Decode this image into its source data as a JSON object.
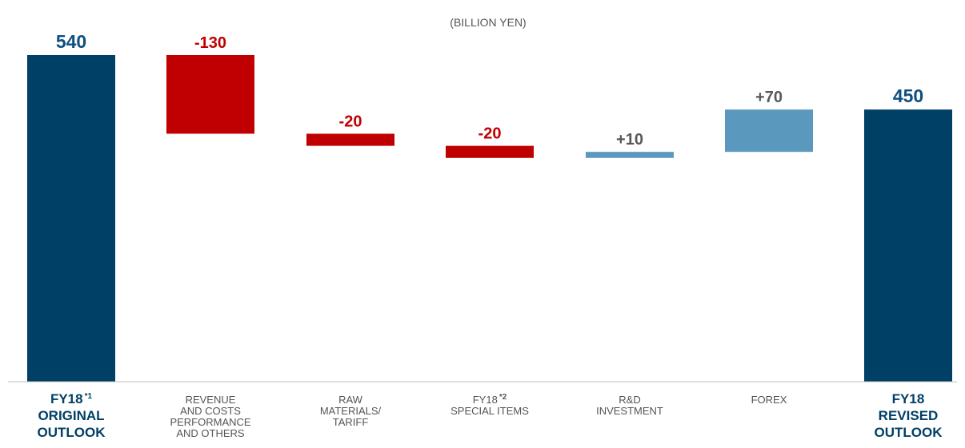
{
  "chart_data": {
    "type": "waterfall",
    "unit_label": "(BILLION YEN)",
    "ylim": [
      0,
      540
    ],
    "colors": {
      "total": "#003f66",
      "decrease": "#c00000",
      "increase": "#5b98bd",
      "total_text": "#0d4f80",
      "decrease_text": "#c00000",
      "increase_text": "#595959",
      "axis": "#bfbfbf"
    },
    "bars": [
      {
        "kind": "total",
        "value": 540,
        "start": 0,
        "end": 540,
        "label": "540",
        "category_lines": [
          "FY18",
          "ORIGINAL",
          "OUTLOOK"
        ],
        "footnote": "*1",
        "style": "major"
      },
      {
        "kind": "decrease",
        "value": -130,
        "start": 540,
        "end": 410,
        "label": "-130",
        "category_lines": [
          "REVENUE",
          "AND COSTS",
          "PERFORMANCE",
          "AND OTHERS"
        ],
        "footnote": "",
        "style": "minor"
      },
      {
        "kind": "decrease",
        "value": -20,
        "start": 410,
        "end": 390,
        "label": "-20",
        "category_lines": [
          "RAW",
          "MATERIALS/",
          "TARIFF"
        ],
        "footnote": "",
        "style": "minor"
      },
      {
        "kind": "decrease",
        "value": -20,
        "start": 390,
        "end": 370,
        "label": "-20",
        "category_lines": [
          "FY18",
          "SPECIAL ITEMS"
        ],
        "footnote": "*2",
        "style": "minor"
      },
      {
        "kind": "increase",
        "value": 10,
        "start": 370,
        "end": 380,
        "label": "+10",
        "category_lines": [
          "R&D",
          "INVESTMENT"
        ],
        "footnote": "",
        "style": "minor"
      },
      {
        "kind": "increase",
        "value": 70,
        "start": 380,
        "end": 450,
        "label": "+70",
        "category_lines": [
          "FOREX"
        ],
        "footnote": "",
        "style": "minor"
      },
      {
        "kind": "total",
        "value": 450,
        "start": 0,
        "end": 450,
        "label": "450",
        "category_lines": [
          "FY18",
          "REVISED",
          "OUTLOOK"
        ],
        "footnote": "",
        "style": "major"
      }
    ]
  }
}
